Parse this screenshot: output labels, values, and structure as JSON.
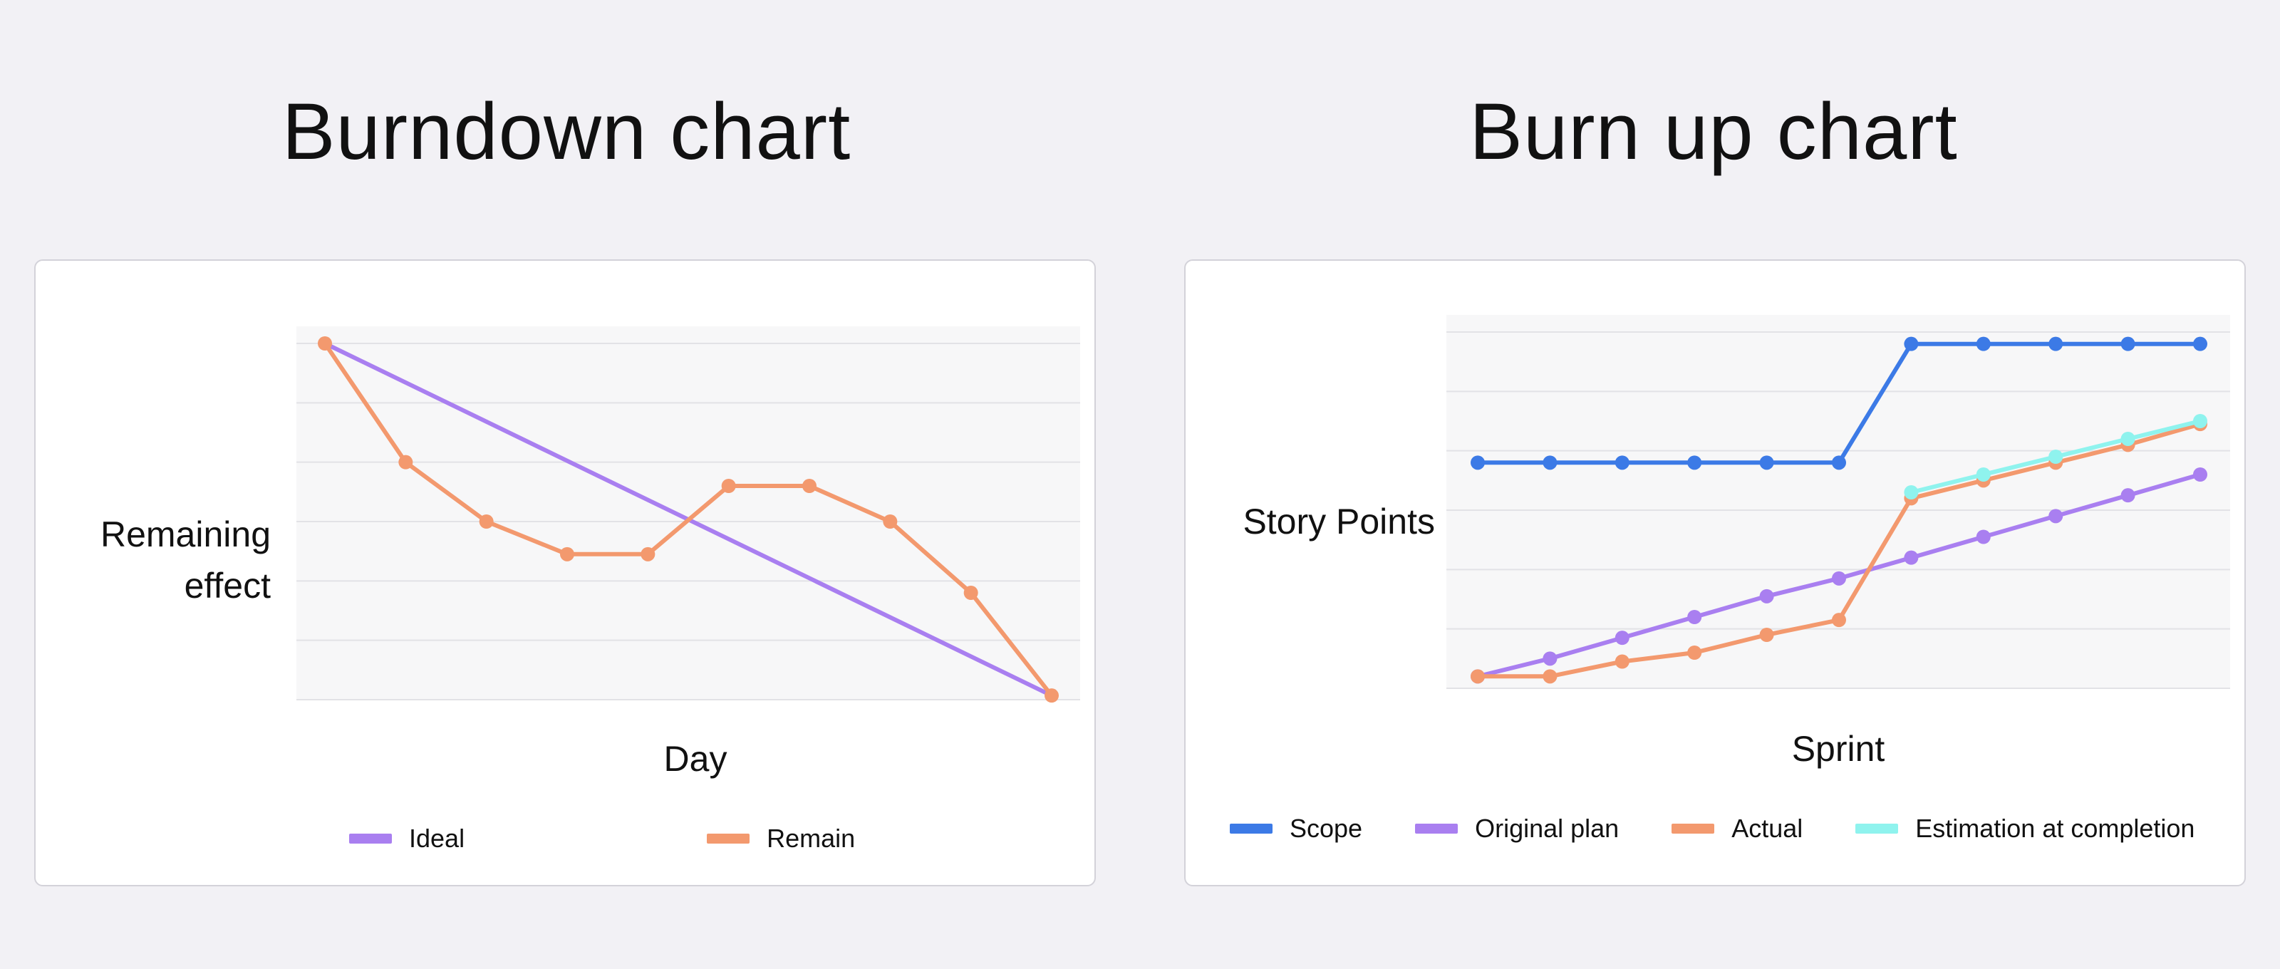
{
  "chart_data": [
    {
      "type": "line",
      "title": "Burndown chart",
      "xlabel": "Day",
      "ylabel": "Remaining\neffect",
      "x": [
        0,
        1,
        2,
        3,
        4,
        5,
        6,
        7,
        8,
        9
      ],
      "ylim": [
        0,
        6
      ],
      "grid": true,
      "legend_position": "bottom",
      "series": [
        {
          "name": "Ideal",
          "color": "#a97ff0",
          "markers": false,
          "x": [
            0,
            9
          ],
          "values": [
            6,
            0.07
          ]
        },
        {
          "name": "Remain",
          "color": "#f3996e",
          "markers": true,
          "x": [
            0,
            1,
            2,
            3,
            4,
            5,
            6,
            7,
            8,
            9
          ],
          "values": [
            6,
            4,
            3,
            2.45,
            2.45,
            3.6,
            3.6,
            3,
            1.8,
            0.07
          ]
        }
      ]
    },
    {
      "type": "line",
      "title": "Burn up chart",
      "xlabel": "Sprint",
      "ylabel": "Story Points",
      "x": [
        0,
        1,
        2,
        3,
        4,
        5,
        6,
        7,
        8,
        9,
        10
      ],
      "ylim": [
        0,
        6
      ],
      "grid": true,
      "legend_position": "bottom",
      "series": [
        {
          "name": "Scope",
          "color": "#3c7ae6",
          "markers": true,
          "x": [
            0,
            1,
            2,
            3,
            4,
            5,
            6,
            7,
            8,
            9,
            10
          ],
          "values": [
            3.8,
            3.8,
            3.8,
            3.8,
            3.8,
            3.8,
            5.8,
            5.8,
            5.8,
            5.8,
            5.8
          ]
        },
        {
          "name": "Original plan",
          "color": "#a97ff0",
          "markers": true,
          "x": [
            0,
            1,
            2,
            3,
            4,
            5,
            6,
            7,
            8,
            9,
            10
          ],
          "values": [
            0.2,
            0.5,
            0.85,
            1.2,
            1.55,
            1.85,
            2.2,
            2.55,
            2.9,
            3.25,
            3.6
          ]
        },
        {
          "name": "Actual",
          "color": "#f3996e",
          "markers": true,
          "x": [
            0,
            1,
            2,
            3,
            4,
            5,
            6,
            7,
            8,
            9,
            10
          ],
          "values": [
            0.2,
            0.2,
            0.45,
            0.6,
            0.9,
            1.15,
            3.2,
            3.5,
            3.8,
            4.1,
            4.45
          ]
        },
        {
          "name": "Estimation at completion",
          "color": "#8ff3ee",
          "markers": true,
          "x": [
            6,
            7,
            8,
            9,
            10
          ],
          "values": [
            3.3,
            3.6,
            3.9,
            4.2,
            4.5
          ]
        }
      ]
    }
  ]
}
